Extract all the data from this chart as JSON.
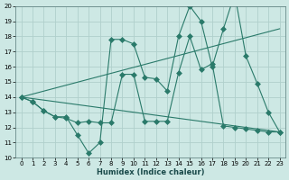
{
  "background_color": "#cde8e4",
  "grid_color": "#b0d0cc",
  "line_color": "#2a7a6a",
  "xlabel": "Humidex (Indice chaleur)",
  "xlim": [
    -0.5,
    23.5
  ],
  "ylim": [
    10,
    20
  ],
  "xticks": [
    0,
    1,
    2,
    3,
    4,
    5,
    6,
    7,
    8,
    9,
    10,
    11,
    12,
    13,
    14,
    15,
    16,
    17,
    18,
    19,
    20,
    21,
    22,
    23
  ],
  "yticks": [
    10,
    11,
    12,
    13,
    14,
    15,
    16,
    17,
    18,
    19,
    20
  ],
  "series1_x": [
    0,
    1,
    2,
    3,
    4,
    5,
    6,
    7,
    8,
    9,
    10,
    11,
    12,
    13,
    14,
    15,
    16,
    17,
    18,
    19,
    20,
    21,
    22,
    23
  ],
  "series1_y": [
    14.0,
    13.7,
    13.1,
    12.7,
    12.7,
    11.5,
    10.3,
    11.0,
    17.8,
    17.8,
    17.5,
    15.3,
    15.2,
    14.4,
    18.0,
    20.0,
    19.0,
    16.0,
    18.5,
    20.8,
    16.7,
    14.9,
    13.0,
    11.7
  ],
  "series2_x": [
    0,
    1,
    2,
    3,
    4,
    5,
    6,
    7,
    8,
    9,
    10,
    11,
    12,
    13,
    14,
    15,
    16,
    17,
    18,
    19,
    20,
    21,
    22,
    23
  ],
  "series2_y": [
    14.0,
    13.7,
    13.1,
    12.7,
    12.6,
    12.3,
    12.4,
    12.3,
    12.3,
    15.5,
    15.5,
    12.4,
    12.4,
    12.4,
    15.6,
    18.0,
    15.8,
    16.2,
    12.1,
    12.0,
    11.9,
    11.8,
    11.7,
    11.7
  ],
  "series3_x": [
    0,
    23
  ],
  "series3_y": [
    14.0,
    18.5
  ],
  "series4_x": [
    0,
    23
  ],
  "series4_y": [
    14.0,
    11.7
  ],
  "tick_fontsize": 5,
  "xlabel_fontsize": 6,
  "linewidth": 0.8,
  "markersize": 3
}
